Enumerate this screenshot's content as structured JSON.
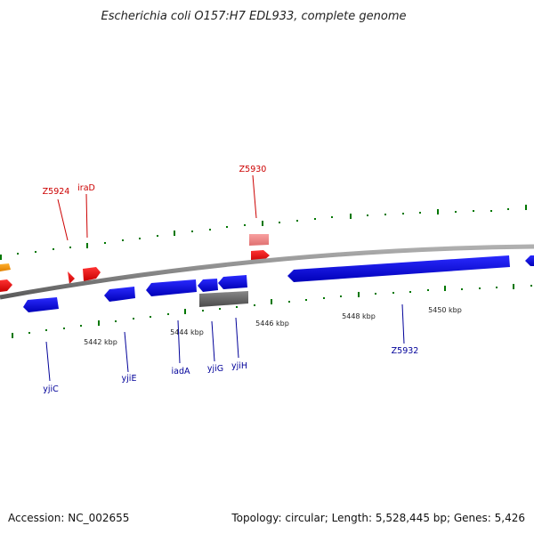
{
  "title": "Escherichia coli O157:H7 EDL933, complete genome",
  "footer": {
    "accession": "Accession: NC_002655",
    "topology": "Topology: circular; Length: 5,528,445 bp; Genes: 5,426"
  },
  "tick_labels": [
    "5442 kbp",
    "5444 kbp",
    "5446 kbp",
    "5448 kbp",
    "5450 kbp"
  ],
  "genes": [
    {
      "name": "Z5924",
      "strand": "forward",
      "color": "#cc0000"
    },
    {
      "name": "iraD",
      "strand": "forward",
      "color": "#cc0000"
    },
    {
      "name": "Z5930",
      "strand": "forward",
      "color": "#cc0000"
    },
    {
      "name": "yjiC",
      "strand": "reverse",
      "color": "#000099"
    },
    {
      "name": "yjiE",
      "strand": "reverse",
      "color": "#000099"
    },
    {
      "name": "iadA",
      "strand": "reverse",
      "color": "#000099"
    },
    {
      "name": "yjiG",
      "strand": "reverse",
      "color": "#000099"
    },
    {
      "name": "yjiH",
      "strand": "reverse",
      "color": "#000099"
    },
    {
      "name": "Z5932",
      "strand": "reverse",
      "color": "#000099"
    }
  ],
  "colors": {
    "forward_cds": "#ff0000",
    "forward_cds_faded": "#f08080",
    "reverse_cds": "#0000ff",
    "orange_feature": "#ff9900",
    "gray_feature": "#666666",
    "backbone": "#888888",
    "ticks": "#007700"
  }
}
